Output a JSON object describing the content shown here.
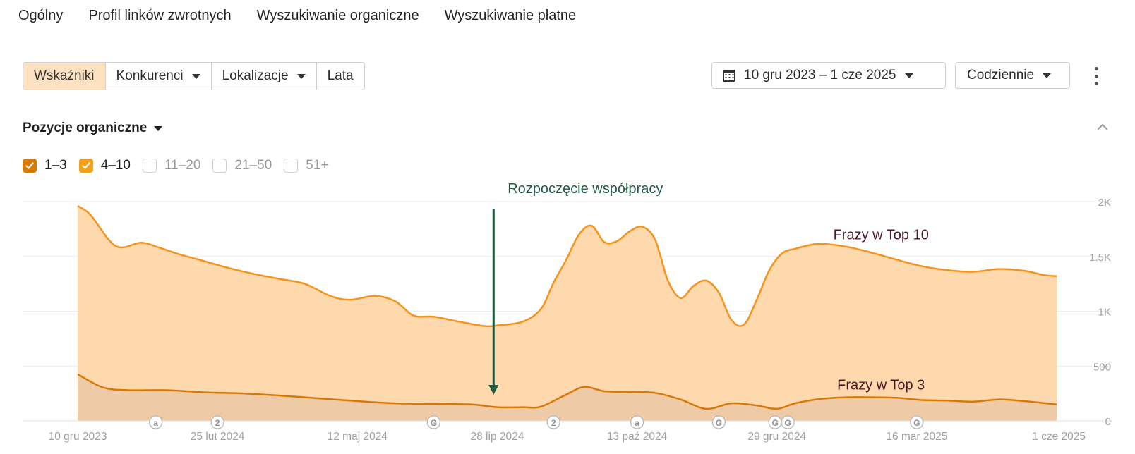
{
  "nav": {
    "tabs": [
      "Ogólny",
      "Profil linków zwrotnych",
      "Wyszukiwanie organiczne",
      "Wyszukiwanie płatne"
    ]
  },
  "toolbar": {
    "segments": [
      {
        "label": "Wskaźniki",
        "active": true,
        "dropdown": false
      },
      {
        "label": "Konkurenci",
        "active": false,
        "dropdown": true
      },
      {
        "label": "Lokalizacje",
        "active": false,
        "dropdown": true
      },
      {
        "label": "Lata",
        "active": false,
        "dropdown": false
      }
    ],
    "date_range": "10 gru 2023 – 1 cze 2025",
    "frequency": "Codziennie"
  },
  "section": {
    "title": "Pozycje organiczne"
  },
  "legend": [
    {
      "label": "1–3",
      "checked": true,
      "color": "#d97a04"
    },
    {
      "label": "4–10",
      "checked": true,
      "color": "#f5a01a"
    },
    {
      "label": "11–20",
      "checked": false
    },
    {
      "label": "21–50",
      "checked": false
    },
    {
      "label": "51+",
      "checked": false
    }
  ],
  "chart_data": {
    "type": "area",
    "x_range": [
      "2023-12-10",
      "2025-06-01"
    ],
    "ylim": [
      0,
      2000
    ],
    "y_ticks": [
      {
        "value": 2000,
        "label": "2K"
      },
      {
        "value": 1500,
        "label": "1.5K"
      },
      {
        "value": 1000,
        "label": "1K"
      },
      {
        "value": 500,
        "label": "500"
      },
      {
        "value": 0,
        "label": "0"
      }
    ],
    "x_ticks": [
      {
        "date": "2023-12-10",
        "label": "10 gru 2023"
      },
      {
        "date": "2024-02-25",
        "label": "25 lut 2024"
      },
      {
        "date": "2024-05-12",
        "label": "12 maj 2024"
      },
      {
        "date": "2024-07-28",
        "label": "28 lip 2024"
      },
      {
        "date": "2024-10-13",
        "label": "13 paź 2024"
      },
      {
        "date": "2024-12-29",
        "label": "29 gru 2024"
      },
      {
        "date": "2025-03-16",
        "label": "16 mar 2025"
      },
      {
        "date": "2025-06-01",
        "label": "1 cze 2025"
      }
    ],
    "grid": true,
    "series": [
      {
        "key": "4-10",
        "line_color": "#f5931c",
        "fill_color": "#fdd9ad",
        "x": [
          "2023-12-10",
          "2023-12-17",
          "2023-12-31",
          "2024-01-14",
          "2024-01-24",
          "2024-02-03",
          "2024-02-17",
          "2024-03-02",
          "2024-03-16",
          "2024-03-30",
          "2024-04-13",
          "2024-04-27",
          "2024-05-08",
          "2024-05-22",
          "2024-06-02",
          "2024-06-12",
          "2024-06-23",
          "2024-07-07",
          "2024-07-21",
          "2024-07-28",
          "2024-08-11",
          "2024-08-21",
          "2024-08-28",
          "2024-09-04",
          "2024-09-11",
          "2024-09-18",
          "2024-09-25",
          "2024-10-02",
          "2024-10-09",
          "2024-10-16",
          "2024-10-23",
          "2024-10-30",
          "2024-11-06",
          "2024-11-13",
          "2024-11-20",
          "2024-11-27",
          "2024-12-04",
          "2024-12-11",
          "2024-12-18",
          "2024-12-25",
          "2025-01-01",
          "2025-01-08",
          "2025-01-15",
          "2025-01-22",
          "2025-02-05",
          "2025-02-19",
          "2025-03-05",
          "2025-03-19",
          "2025-04-02",
          "2025-04-16",
          "2025-04-30",
          "2025-05-14",
          "2025-05-25",
          "2025-06-01"
        ],
        "values": [
          1960,
          1880,
          1595,
          1625,
          1580,
          1525,
          1460,
          1395,
          1340,
          1295,
          1250,
          1140,
          1105,
          1140,
          1090,
          960,
          950,
          905,
          865,
          870,
          905,
          1020,
          1260,
          1470,
          1700,
          1780,
          1630,
          1640,
          1730,
          1770,
          1650,
          1280,
          1120,
          1230,
          1280,
          1170,
          920,
          880,
          1110,
          1380,
          1530,
          1570,
          1600,
          1615,
          1590,
          1535,
          1470,
          1410,
          1375,
          1360,
          1385,
          1370,
          1330,
          1320
        ]
      },
      {
        "key": "1-3",
        "line_color": "#d7780a",
        "fill_color": "#eecba6",
        "x": [
          "2023-12-10",
          "2023-12-24",
          "2024-01-07",
          "2024-01-28",
          "2024-02-18",
          "2024-03-10",
          "2024-03-31",
          "2024-04-21",
          "2024-05-12",
          "2024-06-02",
          "2024-06-23",
          "2024-07-14",
          "2024-07-28",
          "2024-08-11",
          "2024-08-21",
          "2024-09-04",
          "2024-09-14",
          "2024-09-25",
          "2024-10-09",
          "2024-10-23",
          "2024-11-06",
          "2024-11-20",
          "2024-12-04",
          "2024-12-18",
          "2024-12-29",
          "2025-01-08",
          "2025-01-22",
          "2025-02-05",
          "2025-02-19",
          "2025-03-05",
          "2025-03-19",
          "2025-04-02",
          "2025-04-16",
          "2025-04-30",
          "2025-05-14",
          "2025-06-01"
        ],
        "values": [
          425,
          305,
          280,
          280,
          260,
          250,
          230,
          205,
          180,
          160,
          155,
          150,
          125,
          125,
          130,
          240,
          310,
          270,
          265,
          255,
          195,
          110,
          160,
          140,
          110,
          160,
          200,
          215,
          215,
          210,
          190,
          185,
          175,
          195,
          180,
          150
        ]
      }
    ],
    "annotation": {
      "text": "Rozpoczęcie współpracy",
      "date": "2024-07-26",
      "color": "#1f5a3e"
    },
    "series_labels": [
      {
        "text": "Frazy w Top 10",
        "date": "2025-02-15",
        "value": 1700,
        "color": "#4a1a2a"
      },
      {
        "text": "Frazy w Top 3",
        "date": "2025-02-15",
        "value": 330,
        "color": "#4a1a2a"
      }
    ],
    "markers": [
      {
        "date": "2024-01-22",
        "glyph": "a"
      },
      {
        "date": "2024-02-25",
        "glyph": "2"
      },
      {
        "date": "2024-06-23",
        "glyph": "G"
      },
      {
        "date": "2024-08-28",
        "glyph": "2"
      },
      {
        "date": "2024-10-13",
        "glyph": "a"
      },
      {
        "date": "2024-11-27",
        "glyph": "G"
      },
      {
        "date": "2024-12-28",
        "glyph": "G"
      },
      {
        "date": "2025-01-04",
        "glyph": "G"
      },
      {
        "date": "2025-03-16",
        "glyph": "G"
      }
    ]
  }
}
